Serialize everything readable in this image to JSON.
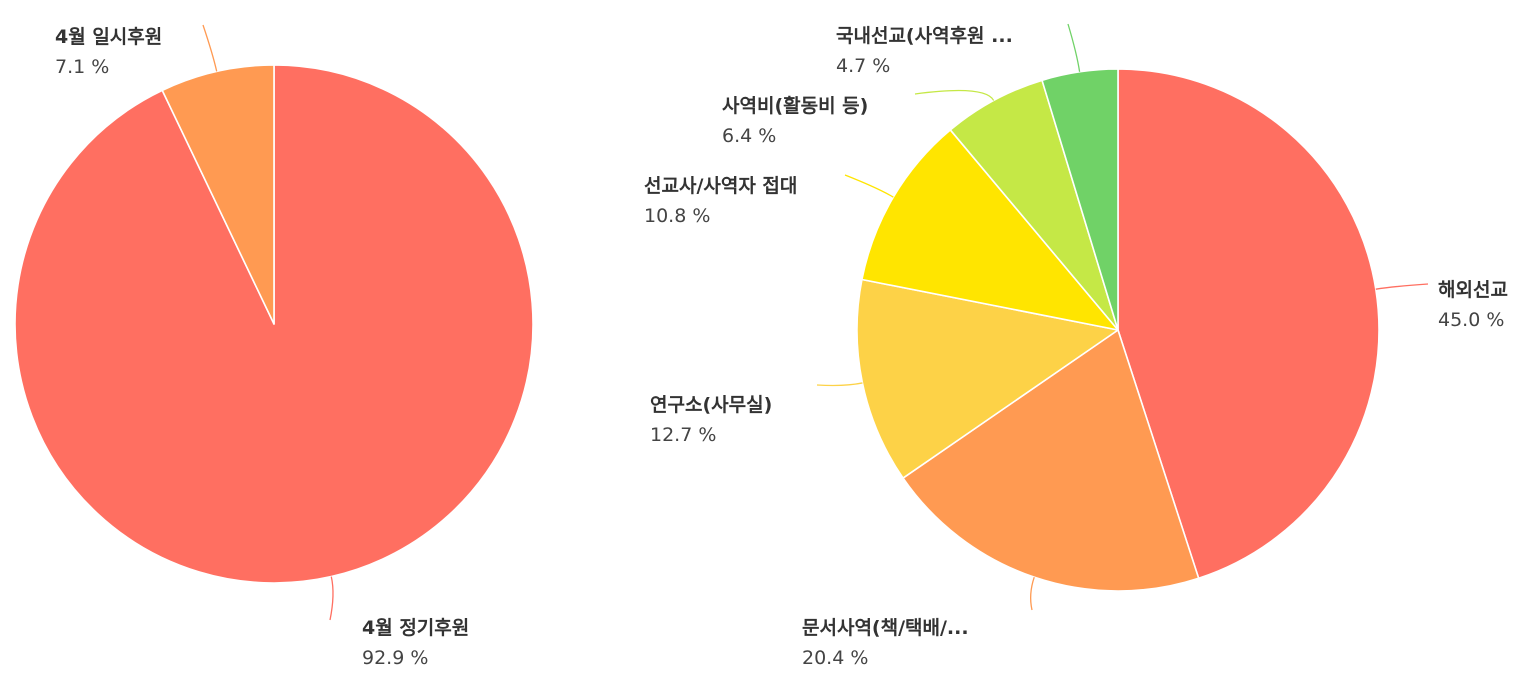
{
  "chart_data": [
    {
      "type": "pie",
      "slices": [
        {
          "label": "4월 정기후원",
          "value": 92.9,
          "value_label": "92.9 %",
          "color": "#FF6F61"
        },
        {
          "label": "4월 일시후원",
          "value": 7.1,
          "value_label": "7.1 %",
          "color": "#FF9A52"
        }
      ]
    },
    {
      "type": "pie",
      "slices": [
        {
          "label": "해외선교",
          "value": 45.0,
          "value_label": "45.0 %",
          "color": "#FF6F61"
        },
        {
          "label": "문서사역(책/택배/...",
          "value": 20.4,
          "value_label": "20.4 %",
          "color": "#FF9A52"
        },
        {
          "label": "연구소(사무실)",
          "value": 12.7,
          "value_label": "12.7 %",
          "color": "#FDD247"
        },
        {
          "label": "선교사/사역자 접대",
          "value": 10.8,
          "value_label": "10.8 %",
          "color": "#FFE500"
        },
        {
          "label": "사역비(활동비 등)",
          "value": 6.4,
          "value_label": "6.4 %",
          "color": "#C5E846"
        },
        {
          "label": "국내선교(사역후원 ...",
          "value": 4.7,
          "value_label": "4.7 %",
          "color": "#70D267"
        }
      ]
    }
  ]
}
